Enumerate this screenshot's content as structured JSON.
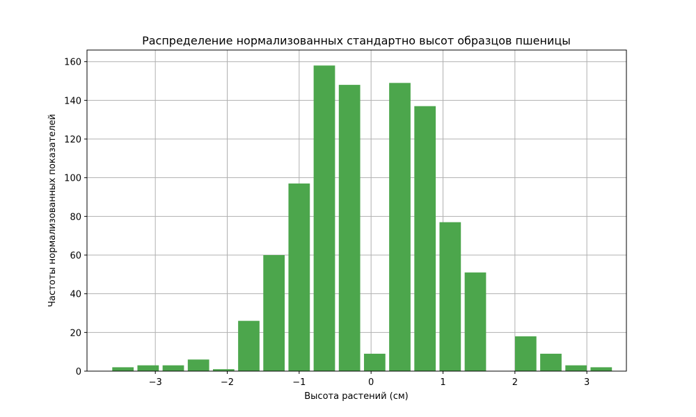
{
  "chart_data": {
    "type": "bar",
    "title": "Распределение нормализованных стандартно высот образцов пшеницы",
    "xlabel": "Высота растений (см)",
    "ylabel": "Частоты нормализованных показателей",
    "bin_centers": [
      -3.45,
      -3.1,
      -2.75,
      -2.4,
      -2.05,
      -1.7,
      -1.35,
      -1.0,
      -0.65,
      -0.3,
      0.05,
      0.4,
      0.75,
      1.1,
      1.45,
      1.8,
      2.15,
      2.5,
      2.85,
      3.2
    ],
    "bin_width": 0.35,
    "values": [
      2,
      3,
      3,
      6,
      1,
      26,
      60,
      97,
      158,
      148,
      9,
      149,
      137,
      77,
      51,
      0,
      18,
      9,
      3,
      2
    ],
    "xlim": [
      -3.95,
      3.55
    ],
    "ylim": [
      0,
      166
    ],
    "xticks": [
      -3,
      -2,
      -1,
      0,
      1,
      2,
      3
    ],
    "xtick_labels": [
      "−3",
      "−2",
      "−1",
      "0",
      "1",
      "2",
      "3"
    ],
    "yticks": [
      0,
      20,
      40,
      60,
      80,
      100,
      120,
      140,
      160
    ],
    "ytick_labels": [
      "0",
      "20",
      "40",
      "60",
      "80",
      "100",
      "120",
      "140",
      "160"
    ],
    "grid": true,
    "bar_color": "#4ca64c"
  }
}
